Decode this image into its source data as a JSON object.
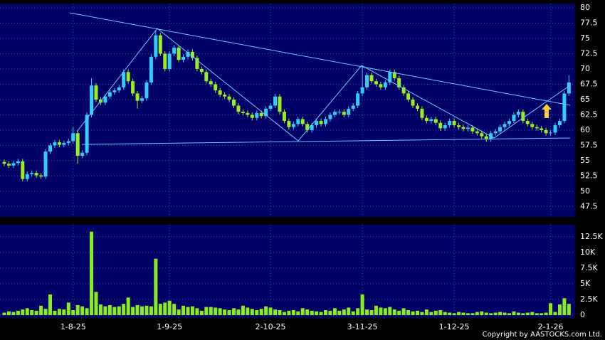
{
  "chart_data": {
    "type": "candlestick",
    "categories": [
      null,
      null,
      null,
      null,
      null,
      null,
      null,
      null,
      null,
      null,
      null,
      null,
      null,
      null,
      null,
      "1-8-25",
      null,
      null,
      null,
      null,
      null,
      null,
      null,
      null,
      null,
      null,
      null,
      null,
      null,
      null,
      null,
      null,
      null,
      null,
      null,
      null,
      "1-9-25",
      null,
      null,
      null,
      null,
      null,
      null,
      null,
      null,
      null,
      null,
      null,
      null,
      null,
      null,
      null,
      null,
      null,
      null,
      null,
      null,
      null,
      "2-10-25",
      null,
      null,
      null,
      null,
      null,
      null,
      null,
      null,
      null,
      null,
      null,
      null,
      null,
      null,
      null,
      null,
      null,
      null,
      null,
      "3-11-25",
      null,
      null,
      null,
      null,
      null,
      null,
      null,
      null,
      null,
      null,
      null,
      null,
      null,
      null,
      null,
      null,
      null,
      null,
      null,
      "1-12-25",
      null,
      null,
      null,
      null,
      null,
      null,
      null,
      null,
      null,
      null,
      null,
      null,
      null,
      null,
      null,
      null,
      null,
      null,
      null,
      null,
      "2-1-26",
      null,
      null,
      null,
      null
    ],
    "open": [
      54.8,
      54.5,
      54.2,
      54.6,
      54.9,
      52.0,
      52.8,
      53.0,
      52.6,
      52.4,
      56.5,
      57.5,
      58.0,
      57.6,
      57.9,
      58.2,
      59.5,
      55.8,
      56.3,
      62.5,
      67.3,
      65.0,
      64.5,
      65.5,
      66.2,
      66.5,
      67.0,
      69.5,
      68.0,
      66.0,
      64.8,
      65.2,
      67.8,
      72.0,
      75.5,
      72.5,
      70.0,
      72.5,
      73.5,
      71.5,
      72.0,
      72.8,
      71.8,
      70.0,
      69.5,
      68.0,
      67.5,
      66.5,
      65.8,
      65.5,
      65.0,
      64.0,
      63.0,
      62.8,
      62.5,
      62.0,
      62.8,
      62.3,
      63.5,
      64.0,
      65.5,
      63.0,
      61.5,
      60.5,
      61.0,
      61.8,
      61.0,
      60.0,
      60.8,
      61.5,
      61.0,
      61.8,
      62.5,
      63.0,
      63.0,
      62.5,
      63.5,
      64.0,
      66.0,
      67.0,
      69.0,
      68.0,
      67.5,
      67.0,
      67.8,
      69.5,
      68.5,
      67.0,
      66.0,
      65.0,
      64.0,
      63.5,
      62.0,
      61.5,
      61.8,
      61.2,
      60.3,
      60.8,
      61.5,
      60.8,
      60.5,
      60.2,
      60.4,
      59.8,
      59.5,
      59.0,
      58.5,
      59.5,
      59.8,
      60.5,
      61.0,
      61.5,
      62.5,
      63.0,
      61.5,
      61.0,
      60.5,
      60.3,
      60.0,
      59.5,
      59.6,
      60.8,
      61.5,
      66.0
    ],
    "high": [
      55.2,
      54.9,
      55.0,
      55.3,
      55.3,
      53.2,
      53.4,
      53.4,
      53.0,
      56.9,
      57.9,
      58.4,
      58.4,
      58.3,
      58.6,
      60.5,
      59.9,
      56.7,
      62.9,
      68.5,
      67.7,
      65.4,
      65.9,
      66.6,
      66.9,
      67.4,
      69.9,
      69.9,
      68.4,
      66.4,
      65.6,
      68.2,
      72.4,
      76.3,
      75.9,
      72.9,
      72.9,
      73.9,
      73.9,
      72.4,
      73.2,
      73.2,
      72.2,
      70.4,
      69.9,
      68.4,
      67.9,
      66.9,
      66.2,
      65.9,
      65.4,
      64.4,
      63.4,
      63.2,
      62.9,
      63.2,
      63.2,
      63.9,
      64.4,
      65.9,
      65.9,
      63.4,
      61.9,
      61.4,
      62.2,
      62.2,
      61.4,
      61.2,
      61.9,
      61.9,
      62.2,
      62.9,
      63.4,
      63.4,
      63.4,
      63.9,
      64.4,
      66.4,
      70.4,
      69.4,
      69.4,
      68.4,
      67.9,
      68.2,
      69.9,
      69.9,
      68.9,
      67.4,
      66.4,
      65.4,
      64.4,
      63.9,
      62.4,
      62.2,
      62.2,
      61.6,
      61.2,
      61.9,
      61.9,
      61.2,
      60.9,
      60.8,
      60.8,
      60.2,
      59.9,
      59.4,
      59.9,
      60.2,
      60.9,
      61.4,
      61.9,
      62.9,
      63.4,
      63.4,
      61.9,
      61.4,
      60.9,
      60.7,
      60.4,
      60.0,
      61.2,
      61.9,
      66.4,
      69.0
    ],
    "low": [
      54.1,
      53.8,
      53.8,
      54.2,
      51.6,
      51.6,
      52.4,
      52.2,
      52.0,
      52.0,
      56.1,
      57.1,
      57.2,
      57.2,
      57.5,
      57.8,
      54.5,
      55.4,
      55.9,
      62.1,
      64.6,
      64.1,
      64.1,
      65.1,
      65.8,
      66.1,
      66.6,
      67.6,
      65.6,
      63.5,
      64.4,
      64.8,
      67.4,
      71.6,
      72.1,
      69.6,
      69.6,
      72.1,
      71.1,
      71.1,
      71.6,
      71.4,
      69.6,
      69.1,
      67.6,
      67.1,
      66.1,
      65.4,
      65.1,
      64.6,
      63.6,
      62.6,
      62.4,
      62.1,
      61.6,
      61.6,
      61.9,
      61.9,
      63.1,
      63.6,
      62.6,
      61.1,
      60.1,
      60.1,
      60.6,
      60.6,
      59.6,
      59.6,
      60.4,
      60.6,
      60.6,
      61.4,
      62.1,
      62.6,
      62.1,
      62.1,
      63.1,
      63.6,
      65.6,
      66.6,
      67.6,
      67.1,
      66.6,
      66.6,
      67.4,
      68.1,
      66.6,
      65.6,
      64.6,
      63.6,
      63.1,
      61.6,
      61.1,
      61.1,
      60.8,
      59.9,
      59.9,
      60.4,
      60.4,
      60.1,
      59.8,
      59.8,
      59.4,
      59.1,
      58.6,
      58.1,
      58.1,
      59.1,
      59.4,
      60.1,
      60.6,
      61.1,
      62.1,
      61.1,
      60.6,
      60.1,
      59.9,
      59.6,
      59.1,
      59.1,
      59.2,
      60.4,
      61.1,
      65.6
    ],
    "close": [
      54.5,
      54.2,
      54.6,
      54.9,
      52.0,
      52.8,
      53.0,
      52.6,
      52.4,
      56.5,
      57.5,
      58.0,
      57.6,
      57.9,
      58.2,
      59.5,
      55.8,
      56.3,
      62.5,
      67.3,
      65.0,
      64.5,
      65.5,
      66.2,
      66.5,
      67.0,
      69.5,
      68.0,
      66.0,
      64.8,
      65.2,
      67.8,
      72.0,
      75.5,
      72.5,
      70.0,
      72.5,
      73.5,
      71.5,
      72.0,
      72.8,
      71.8,
      70.0,
      69.5,
      68.0,
      67.5,
      66.5,
      65.8,
      65.5,
      65.0,
      64.0,
      63.0,
      62.8,
      62.5,
      62.0,
      62.8,
      62.3,
      63.5,
      64.0,
      65.5,
      63.0,
      61.5,
      60.5,
      61.0,
      61.8,
      61.0,
      60.0,
      60.8,
      61.5,
      61.0,
      61.8,
      62.5,
      63.0,
      63.0,
      62.5,
      63.5,
      64.0,
      66.0,
      67.0,
      69.0,
      68.0,
      67.5,
      67.0,
      67.8,
      69.5,
      68.5,
      67.0,
      66.0,
      65.0,
      64.0,
      63.5,
      62.0,
      61.5,
      61.8,
      61.2,
      60.3,
      60.8,
      61.5,
      60.8,
      60.5,
      60.2,
      60.4,
      59.8,
      59.5,
      59.0,
      58.5,
      59.5,
      59.8,
      60.5,
      61.0,
      61.5,
      62.5,
      63.0,
      61.5,
      61.0,
      60.5,
      60.3,
      60.0,
      59.5,
      59.6,
      60.8,
      61.5,
      66.0,
      67.8
    ],
    "up_color": "#33ccff",
    "down_color": "#99ee22",
    "volume": {
      "color": "#88ee22",
      "values": [
        400,
        600,
        500,
        700,
        900,
        1100,
        800,
        700,
        1500,
        1000,
        3300,
        700,
        1000,
        900,
        2000,
        800,
        1600,
        1400,
        1100,
        13300,
        3700,
        1700,
        1400,
        1600,
        1300,
        1400,
        1800,
        2800,
        1300,
        1600,
        1400,
        1500,
        1400,
        9000,
        1800,
        2000,
        2300,
        1800,
        900,
        1500,
        1300,
        1400,
        1100,
        700,
        1300,
        1300,
        1200,
        1100,
        900,
        800,
        1100,
        900,
        1500,
        1200,
        1000,
        800,
        1000,
        1400,
        1200,
        900,
        800,
        500,
        700,
        800,
        600,
        1100,
        900,
        700,
        600,
        500,
        800,
        700,
        1100,
        700,
        900,
        1200,
        600,
        1100,
        3300,
        900,
        800,
        1500,
        1200,
        1100,
        1300,
        900,
        700,
        1100,
        800,
        600,
        700,
        500,
        900,
        500,
        700,
        800,
        500,
        400,
        300,
        500,
        400,
        300,
        300,
        500,
        600,
        400,
        300,
        400,
        500,
        400,
        300,
        600,
        400,
        300,
        400,
        500,
        300,
        300,
        400,
        1900,
        500,
        1700,
        2700,
        1800
      ],
      "ylim": [
        -450,
        14400
      ],
      "yticks": [
        0,
        {
          "value": 2500,
          "label": "2.5K"
        },
        {
          "value": 5000,
          "label": "5K"
        },
        {
          "value": 7500,
          "label": "7.5K"
        },
        {
          "value": 10000,
          "label": "10K"
        },
        {
          "value": 12500,
          "label": "12.5K"
        }
      ]
    },
    "ylim": [
      45.8,
      80.7
    ],
    "yticks": [
      47.5,
      50,
      52.5,
      55,
      57.5,
      60,
      62.5,
      65,
      67.5,
      70,
      72.5,
      75,
      77.5,
      80
    ],
    "grid": true,
    "copyright": "Copyright by AASTOCKS.com Ltd."
  }
}
